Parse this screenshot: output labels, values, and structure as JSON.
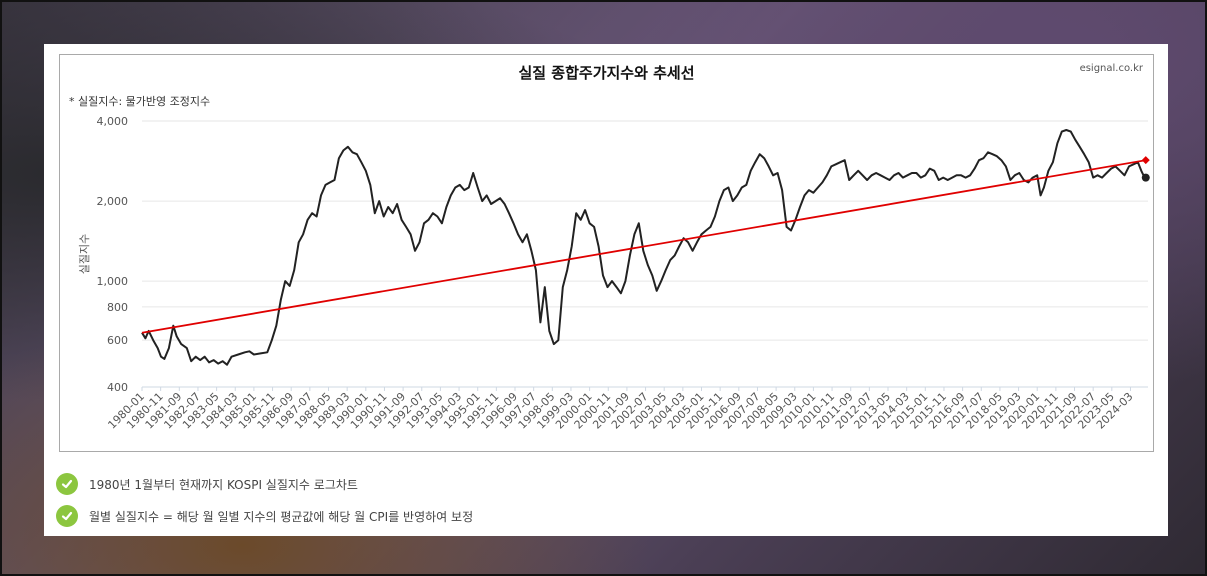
{
  "chart_data": {
    "type": "line",
    "title": "실질 종합주가지수와 추세선",
    "source": "esignal.co.kr",
    "note": "* 실질지수: 물가반영 조정지수",
    "ylabel": "실질지수",
    "yscale": "log",
    "ylim": [
      400,
      4000
    ],
    "yticks": [
      400,
      600,
      800,
      1000,
      2000,
      4000
    ],
    "ytick_labels": [
      "400",
      "600",
      "800",
      "1,000",
      "2,000",
      "4,000"
    ],
    "xtick_labels": [
      "1980-01",
      "1980-11",
      "1981-09",
      "1982-07",
      "1983-05",
      "1984-03",
      "1985-01",
      "1985-11",
      "1986-09",
      "1987-07",
      "1988-05",
      "1989-03",
      "1990-01",
      "1990-11",
      "1991-09",
      "1992-07",
      "1993-05",
      "1994-03",
      "1995-01",
      "1995-11",
      "1996-09",
      "1997-07",
      "1998-05",
      "1999-03",
      "2000-01",
      "2000-11",
      "2001-09",
      "2002-07",
      "2003-05",
      "2004-03",
      "2005-01",
      "2005-11",
      "2006-09",
      "2007-07",
      "2008-05",
      "2009-03",
      "2010-01",
      "2010-11",
      "2011-09",
      "2012-07",
      "2013-05",
      "2014-03",
      "2015-01",
      "2015-11",
      "2016-09",
      "2017-07",
      "2018-05",
      "2019-03",
      "2020-01",
      "2020-11",
      "2021-09",
      "2022-07",
      "2023-05",
      "2024-03"
    ],
    "grid": true,
    "legend": "none",
    "series": [
      {
        "color": "#222222",
        "points": [
          [
            1980.0,
            640
          ],
          [
            1980.15,
            610
          ],
          [
            1980.3,
            650
          ],
          [
            1980.5,
            600
          ],
          [
            1980.7,
            560
          ],
          [
            1980.85,
            520
          ],
          [
            1981.0,
            510
          ],
          [
            1981.2,
            560
          ],
          [
            1981.4,
            680
          ],
          [
            1981.55,
            620
          ],
          [
            1981.75,
            580
          ],
          [
            1982.0,
            560
          ],
          [
            1982.2,
            500
          ],
          [
            1982.4,
            520
          ],
          [
            1982.6,
            505
          ],
          [
            1982.8,
            520
          ],
          [
            1983.0,
            495
          ],
          [
            1983.2,
            505
          ],
          [
            1983.4,
            490
          ],
          [
            1983.6,
            500
          ],
          [
            1983.8,
            485
          ],
          [
            1984.0,
            520
          ],
          [
            1984.3,
            530
          ],
          [
            1984.6,
            540
          ],
          [
            1984.8,
            545
          ],
          [
            1985.0,
            530
          ],
          [
            1985.3,
            535
          ],
          [
            1985.6,
            540
          ],
          [
            1985.8,
            600
          ],
          [
            1986.0,
            680
          ],
          [
            1986.2,
            850
          ],
          [
            1986.4,
            1000
          ],
          [
            1986.6,
            960
          ],
          [
            1986.8,
            1100
          ],
          [
            1987.0,
            1400
          ],
          [
            1987.2,
            1500
          ],
          [
            1987.4,
            1700
          ],
          [
            1987.6,
            1800
          ],
          [
            1987.8,
            1750
          ],
          [
            1988.0,
            2100
          ],
          [
            1988.2,
            2300
          ],
          [
            1988.4,
            2350
          ],
          [
            1988.6,
            2400
          ],
          [
            1988.8,
            2900
          ],
          [
            1989.0,
            3100
          ],
          [
            1989.2,
            3200
          ],
          [
            1989.4,
            3050
          ],
          [
            1989.6,
            3000
          ],
          [
            1989.8,
            2800
          ],
          [
            1990.0,
            2600
          ],
          [
            1990.2,
            2300
          ],
          [
            1990.4,
            1800
          ],
          [
            1990.6,
            2000
          ],
          [
            1990.8,
            1750
          ],
          [
            1991.0,
            1900
          ],
          [
            1991.2,
            1800
          ],
          [
            1991.4,
            1950
          ],
          [
            1991.6,
            1700
          ],
          [
            1991.8,
            1600
          ],
          [
            1992.0,
            1500
          ],
          [
            1992.2,
            1300
          ],
          [
            1992.4,
            1400
          ],
          [
            1992.6,
            1650
          ],
          [
            1992.8,
            1700
          ],
          [
            1993.0,
            1800
          ],
          [
            1993.2,
            1750
          ],
          [
            1993.4,
            1650
          ],
          [
            1993.6,
            1900
          ],
          [
            1993.8,
            2100
          ],
          [
            1994.0,
            2250
          ],
          [
            1994.2,
            2300
          ],
          [
            1994.4,
            2200
          ],
          [
            1994.6,
            2250
          ],
          [
            1994.8,
            2550
          ],
          [
            1995.0,
            2250
          ],
          [
            1995.2,
            2000
          ],
          [
            1995.4,
            2100
          ],
          [
            1995.6,
            1950
          ],
          [
            1995.8,
            2000
          ],
          [
            1996.0,
            2050
          ],
          [
            1996.2,
            1950
          ],
          [
            1996.4,
            1800
          ],
          [
            1996.6,
            1650
          ],
          [
            1996.8,
            1500
          ],
          [
            1997.0,
            1400
          ],
          [
            1997.2,
            1500
          ],
          [
            1997.4,
            1300
          ],
          [
            1997.6,
            1100
          ],
          [
            1997.8,
            700
          ],
          [
            1998.0,
            950
          ],
          [
            1998.2,
            650
          ],
          [
            1998.4,
            580
          ],
          [
            1998.6,
            600
          ],
          [
            1998.8,
            950
          ],
          [
            1999.0,
            1100
          ],
          [
            1999.2,
            1350
          ],
          [
            1999.4,
            1800
          ],
          [
            1999.6,
            1700
          ],
          [
            1999.8,
            1850
          ],
          [
            2000.0,
            1650
          ],
          [
            2000.2,
            1600
          ],
          [
            2000.4,
            1350
          ],
          [
            2000.6,
            1050
          ],
          [
            2000.8,
            950
          ],
          [
            2001.0,
            1000
          ],
          [
            2001.2,
            950
          ],
          [
            2001.4,
            900
          ],
          [
            2001.6,
            1000
          ],
          [
            2001.8,
            1250
          ],
          [
            2002.0,
            1500
          ],
          [
            2002.2,
            1650
          ],
          [
            2002.4,
            1300
          ],
          [
            2002.6,
            1150
          ],
          [
            2002.8,
            1050
          ],
          [
            2003.0,
            920
          ],
          [
            2003.2,
            1000
          ],
          [
            2003.4,
            1100
          ],
          [
            2003.6,
            1200
          ],
          [
            2003.8,
            1250
          ],
          [
            2004.0,
            1350
          ],
          [
            2004.2,
            1450
          ],
          [
            2004.4,
            1400
          ],
          [
            2004.6,
            1300
          ],
          [
            2004.8,
            1400
          ],
          [
            2005.0,
            1500
          ],
          [
            2005.2,
            1550
          ],
          [
            2005.4,
            1600
          ],
          [
            2005.6,
            1750
          ],
          [
            2005.8,
            2000
          ],
          [
            2006.0,
            2200
          ],
          [
            2006.2,
            2250
          ],
          [
            2006.4,
            2000
          ],
          [
            2006.6,
            2100
          ],
          [
            2006.8,
            2250
          ],
          [
            2007.0,
            2300
          ],
          [
            2007.2,
            2600
          ],
          [
            2007.4,
            2800
          ],
          [
            2007.6,
            3000
          ],
          [
            2007.8,
            2900
          ],
          [
            2008.0,
            2700
          ],
          [
            2008.2,
            2500
          ],
          [
            2008.4,
            2550
          ],
          [
            2008.6,
            2200
          ],
          [
            2008.8,
            1600
          ],
          [
            2009.0,
            1550
          ],
          [
            2009.2,
            1700
          ],
          [
            2009.4,
            1900
          ],
          [
            2009.6,
            2100
          ],
          [
            2009.8,
            2200
          ],
          [
            2010.0,
            2150
          ],
          [
            2010.2,
            2250
          ],
          [
            2010.4,
            2350
          ],
          [
            2010.6,
            2500
          ],
          [
            2010.8,
            2700
          ],
          [
            2011.0,
            2750
          ],
          [
            2011.2,
            2800
          ],
          [
            2011.4,
            2850
          ],
          [
            2011.6,
            2400
          ],
          [
            2011.8,
            2500
          ],
          [
            2012.0,
            2600
          ],
          [
            2012.2,
            2500
          ],
          [
            2012.4,
            2400
          ],
          [
            2012.6,
            2500
          ],
          [
            2012.8,
            2550
          ],
          [
            2013.0,
            2500
          ],
          [
            2013.2,
            2450
          ],
          [
            2013.4,
            2400
          ],
          [
            2013.6,
            2500
          ],
          [
            2013.8,
            2550
          ],
          [
            2014.0,
            2450
          ],
          [
            2014.2,
            2500
          ],
          [
            2014.4,
            2550
          ],
          [
            2014.6,
            2550
          ],
          [
            2014.8,
            2450
          ],
          [
            2015.0,
            2500
          ],
          [
            2015.2,
            2650
          ],
          [
            2015.4,
            2600
          ],
          [
            2015.6,
            2400
          ],
          [
            2015.8,
            2450
          ],
          [
            2016.0,
            2400
          ],
          [
            2016.2,
            2450
          ],
          [
            2016.4,
            2500
          ],
          [
            2016.6,
            2500
          ],
          [
            2016.8,
            2450
          ],
          [
            2017.0,
            2500
          ],
          [
            2017.2,
            2650
          ],
          [
            2017.4,
            2850
          ],
          [
            2017.6,
            2900
          ],
          [
            2017.8,
            3050
          ],
          [
            2018.0,
            3000
          ],
          [
            2018.2,
            2950
          ],
          [
            2018.4,
            2850
          ],
          [
            2018.6,
            2700
          ],
          [
            2018.8,
            2400
          ],
          [
            2019.0,
            2500
          ],
          [
            2019.2,
            2550
          ],
          [
            2019.4,
            2400
          ],
          [
            2019.6,
            2350
          ],
          [
            2019.8,
            2450
          ],
          [
            2020.0,
            2500
          ],
          [
            2020.15,
            2100
          ],
          [
            2020.3,
            2250
          ],
          [
            2020.5,
            2600
          ],
          [
            2020.7,
            2800
          ],
          [
            2020.9,
            3300
          ],
          [
            2021.1,
            3650
          ],
          [
            2021.3,
            3700
          ],
          [
            2021.5,
            3650
          ],
          [
            2021.7,
            3400
          ],
          [
            2021.9,
            3200
          ],
          [
            2022.1,
            3000
          ],
          [
            2022.3,
            2800
          ],
          [
            2022.5,
            2450
          ],
          [
            2022.7,
            2500
          ],
          [
            2022.9,
            2450
          ],
          [
            2023.1,
            2550
          ],
          [
            2023.3,
            2650
          ],
          [
            2023.5,
            2700
          ],
          [
            2023.7,
            2600
          ],
          [
            2023.9,
            2500
          ],
          [
            2024.1,
            2700
          ],
          [
            2024.3,
            2750
          ],
          [
            2024.5,
            2800
          ],
          [
            2024.65,
            2600
          ],
          [
            2024.8,
            2450
          ]
        ],
        "last_point": [
          2024.85,
          2450
        ]
      },
      {
        "color": "#e00000",
        "points": [
          [
            1980.0,
            640
          ],
          [
            2024.85,
            2850
          ]
        ],
        "last_point": [
          2024.85,
          2850
        ]
      }
    ]
  },
  "notes": [
    {
      "text": "1980년 1월부터 현재까지 KOSPI 실질지수 로그차트"
    },
    {
      "text": "월별 실질지수 = 해당 월 일별 지수의 평균값에 해당 월 CPI를 반영하여 보정"
    }
  ]
}
